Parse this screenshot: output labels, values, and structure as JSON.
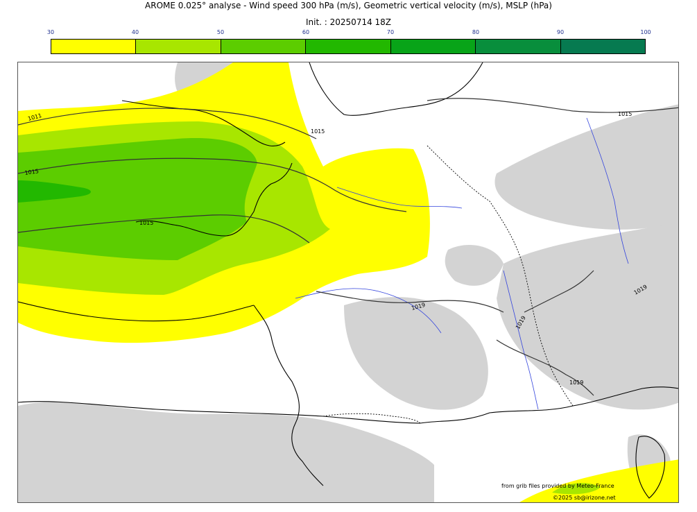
{
  "header": {
    "title": "AROME 0.025° analyse - Wind speed 300 hPa (m/s), Geometric vertical velocity (m/s), MSLP (hPa)",
    "init": "Init. : 20250714 18Z"
  },
  "colorbar": {
    "ticks": [
      "30",
      "40",
      "50",
      "60",
      "70",
      "80",
      "90",
      "100"
    ],
    "colors": [
      "#ffff00",
      "#a8e600",
      "#5ccd00",
      "#22b800",
      "#08a418",
      "#088e3c",
      "#067a50"
    ]
  },
  "map": {
    "isobar_labels": [
      "1011",
      "1015",
      "1015",
      "1015",
      "1015",
      "1019",
      "1019",
      "1019",
      "1019"
    ]
  },
  "footer": {
    "source": "from grib files provided by Meteo-France",
    "copyright": "©2025 sb@irizone.net"
  }
}
